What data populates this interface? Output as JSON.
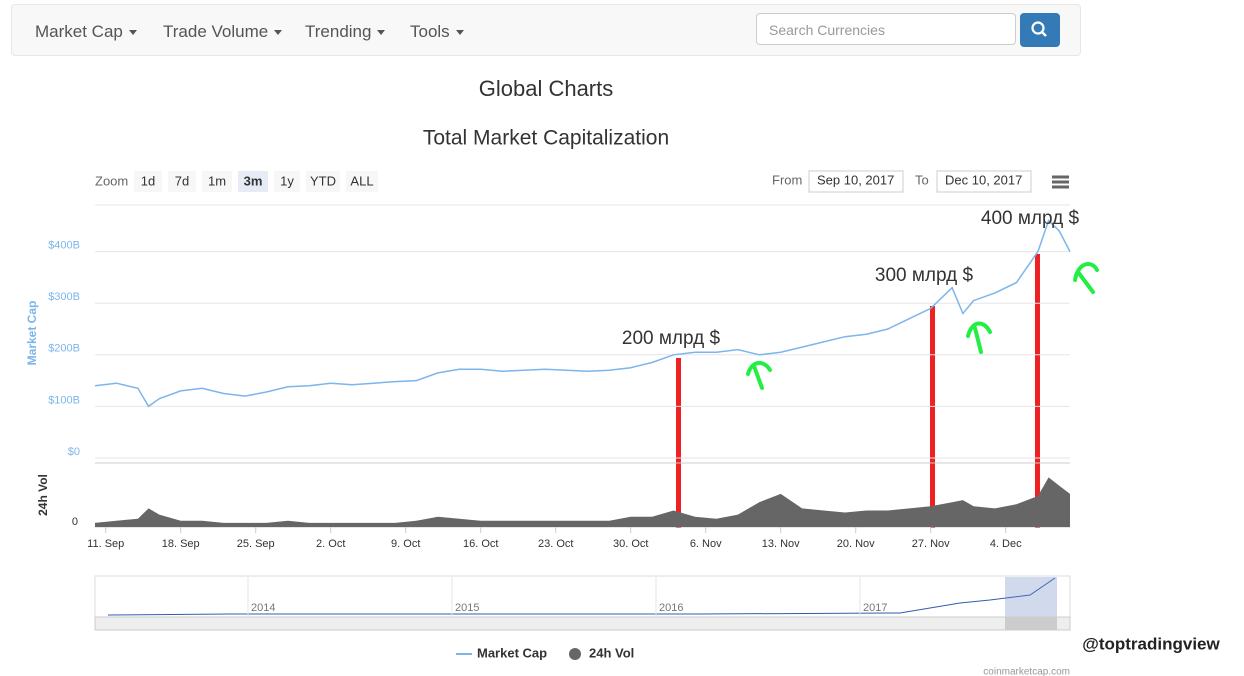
{
  "nav": {
    "menu": [
      "Market Cap",
      "Trade Volume",
      "Trending",
      "Tools"
    ],
    "search_placeholder": "Search Currencies"
  },
  "page_title": "Global Charts",
  "controls": {
    "zoom_label": "Zoom",
    "zoom_buttons": [
      "1d",
      "7d",
      "1m",
      "3m",
      "1y",
      "YTD",
      "ALL"
    ],
    "selected": "3m",
    "from_label": "From",
    "from": "Sep 10, 2017",
    "to_label": "To",
    "to": "Dec 10, 2017"
  },
  "chart_data": {
    "type": "line",
    "title": "Total Market Capitalization",
    "x": [
      "2017-09-10",
      "2017-09-12",
      "2017-09-14",
      "2017-09-15",
      "2017-09-16",
      "2017-09-18",
      "2017-09-20",
      "2017-09-22",
      "2017-09-24",
      "2017-09-26",
      "2017-09-28",
      "2017-09-30",
      "2017-10-02",
      "2017-10-04",
      "2017-10-06",
      "2017-10-08",
      "2017-10-10",
      "2017-10-12",
      "2017-10-14",
      "2017-10-16",
      "2017-10-18",
      "2017-10-20",
      "2017-10-22",
      "2017-10-24",
      "2017-10-26",
      "2017-10-28",
      "2017-10-30",
      "2017-11-01",
      "2017-11-03",
      "2017-11-05",
      "2017-11-07",
      "2017-11-09",
      "2017-11-11",
      "2017-11-13",
      "2017-11-15",
      "2017-11-17",
      "2017-11-19",
      "2017-11-21",
      "2017-11-23",
      "2017-11-25",
      "2017-11-27",
      "2017-11-29",
      "2017-11-30",
      "2017-12-01",
      "2017-12-03",
      "2017-12-05",
      "2017-12-07",
      "2017-12-08",
      "2017-12-09",
      "2017-12-10"
    ],
    "series": [
      {
        "name": "Market Cap",
        "color": "#7cb5ec",
        "values": [
          140,
          145,
          135,
          100,
          115,
          130,
          135,
          125,
          120,
          128,
          138,
          140,
          145,
          142,
          145,
          148,
          150,
          165,
          172,
          172,
          168,
          170,
          172,
          170,
          168,
          170,
          175,
          185,
          200,
          205,
          205,
          210,
          200,
          205,
          215,
          225,
          235,
          240,
          250,
          270,
          290,
          330,
          280,
          305,
          320,
          340,
          400,
          460,
          440,
          400
        ]
      },
      {
        "name": "24h Vol",
        "color": "#666666",
        "axis": "y2",
        "values": [
          2,
          3,
          4,
          9,
          6,
          3,
          3,
          2,
          2,
          2,
          3,
          2,
          2,
          2,
          2,
          2,
          3,
          5,
          4,
          3,
          3,
          3,
          3,
          3,
          3,
          3,
          5,
          5,
          8,
          5,
          4,
          6,
          12,
          16,
          9,
          8,
          7,
          8,
          8,
          9,
          10,
          12,
          13,
          10,
          9,
          11,
          15,
          24,
          20,
          16
        ]
      }
    ],
    "xlim": [
      "2017-09-10",
      "2017-12-10"
    ],
    "xticks": [
      {
        "value": "2017-09-11",
        "label": "11. Sep"
      },
      {
        "value": "2017-09-18",
        "label": "18. Sep"
      },
      {
        "value": "2017-09-25",
        "label": "25. Sep"
      },
      {
        "value": "2017-10-02",
        "label": "2. Oct"
      },
      {
        "value": "2017-10-09",
        "label": "9. Oct"
      },
      {
        "value": "2017-10-16",
        "label": "16. Oct"
      },
      {
        "value": "2017-10-23",
        "label": "23. Oct"
      },
      {
        "value": "2017-10-30",
        "label": "30. Oct"
      },
      {
        "value": "2017-11-06",
        "label": "6. Nov"
      },
      {
        "value": "2017-11-13",
        "label": "13. Nov"
      },
      {
        "value": "2017-11-20",
        "label": "20. Nov"
      },
      {
        "value": "2017-11-27",
        "label": "27. Nov"
      },
      {
        "value": "2017-12-04",
        "label": "4. Dec"
      }
    ],
    "ylim": [
      0,
      500
    ],
    "yticks": [
      {
        "value": 0,
        "label": "$0"
      },
      {
        "value": 100,
        "label": "$100B"
      },
      {
        "value": 200,
        "label": "$200B"
      },
      {
        "value": 300,
        "label": "$300B"
      },
      {
        "value": 400,
        "label": "$400B"
      }
    ],
    "y2lim": [
      0,
      30
    ],
    "y2ticks": [
      0
    ],
    "ylabel": "Market Cap",
    "y2label": "24h Vol",
    "grid": true,
    "annotations": [
      "200 млрд $",
      "300 млрд $",
      "400 млрд $"
    ],
    "navigator_labels": [
      "2014",
      "2015",
      "2016",
      "2017"
    ],
    "credit": "coinmarketcap.com"
  },
  "watermark": "@toptradingview"
}
